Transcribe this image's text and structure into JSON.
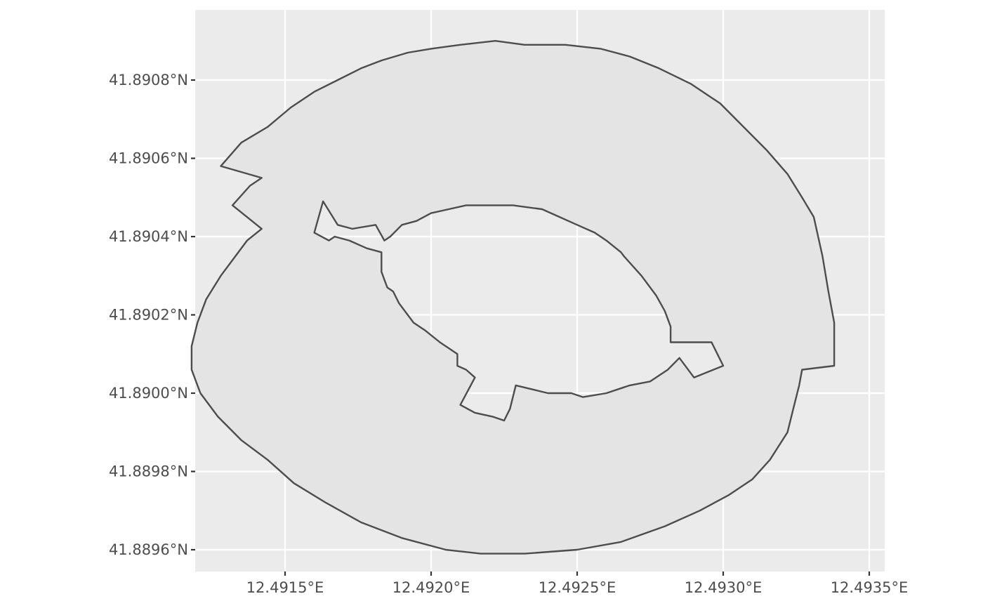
{
  "map_data": {
    "type": "polygon-with-hole",
    "feature_colors": {
      "fill": "#e4e4e4",
      "stroke": "#4d4d4d",
      "panel": "#ebebeb",
      "grid": "#ffffff"
    },
    "x_ticks": [
      {
        "value": 12.4915,
        "label": "12.4915°E"
      },
      {
        "value": 12.492,
        "label": "12.4920°E"
      },
      {
        "value": 12.4925,
        "label": "12.4925°E"
      },
      {
        "value": 12.493,
        "label": "12.4930°E"
      },
      {
        "value": 12.4935,
        "label": "12.4935°E"
      }
    ],
    "y_ticks": [
      {
        "value": 41.8896,
        "label": "41.8896°N"
      },
      {
        "value": 41.8898,
        "label": "41.8898°N"
      },
      {
        "value": 41.89,
        "label": "41.8900°N"
      },
      {
        "value": 41.8902,
        "label": "41.8902°N"
      },
      {
        "value": 41.8904,
        "label": "41.8904°N"
      },
      {
        "value": 41.8906,
        "label": "41.8906°N"
      },
      {
        "value": 41.8908,
        "label": "41.8908°N"
      }
    ],
    "xlim": [
      12.49119,
      12.49356
    ],
    "ylim": [
      41.88944,
      41.89087
    ],
    "outer_ring": [
      [
        12.49128,
        41.89058
      ],
      [
        12.49135,
        41.89064
      ],
      [
        12.49144,
        41.89068
      ],
      [
        12.49152,
        41.89073
      ],
      [
        12.4916,
        41.89077
      ],
      [
        12.49168,
        41.8908
      ],
      [
        12.49176,
        41.89083
      ],
      [
        12.49183,
        41.89085
      ],
      [
        12.49192,
        41.89087
      ],
      [
        12.492,
        41.89088
      ],
      [
        12.4921,
        41.89089
      ],
      [
        12.49222,
        41.8909
      ],
      [
        12.49232,
        41.89089
      ],
      [
        12.49246,
        41.89089
      ],
      [
        12.49258,
        41.89088
      ],
      [
        12.49268,
        41.89086
      ],
      [
        12.49278,
        41.89083
      ],
      [
        12.49289,
        41.89079
      ],
      [
        12.49299,
        41.89074
      ],
      [
        12.49307,
        41.89068
      ],
      [
        12.49315,
        41.89062
      ],
      [
        12.49322,
        41.89056
      ],
      [
        12.49327,
        41.8905
      ],
      [
        12.49331,
        41.89045
      ],
      [
        12.49334,
        41.89035
      ],
      [
        12.49336,
        41.89026
      ],
      [
        12.49338,
        41.89018
      ],
      [
        12.49338,
        41.89011
      ],
      [
        12.49338,
        41.89007
      ],
      [
        12.49327,
        41.89006
      ],
      [
        12.49326,
        41.89002
      ],
      [
        12.49324,
        41.88996
      ],
      [
        12.49322,
        41.8899
      ],
      [
        12.49316,
        41.88983
      ],
      [
        12.4931,
        41.88978
      ],
      [
        12.49302,
        41.88974
      ],
      [
        12.49292,
        41.8897
      ],
      [
        12.4928,
        41.88966
      ],
      [
        12.49265,
        41.88962
      ],
      [
        12.4925,
        41.8896
      ],
      [
        12.49232,
        41.88959
      ],
      [
        12.49217,
        41.88959
      ],
      [
        12.49205,
        41.8896
      ],
      [
        12.4919,
        41.88963
      ],
      [
        12.49176,
        41.88967
      ],
      [
        12.49164,
        41.88972
      ],
      [
        12.49153,
        41.88977
      ],
      [
        12.49144,
        41.88983
      ],
      [
        12.49135,
        41.88988
      ],
      [
        12.49127,
        41.88994
      ],
      [
        12.49121,
        41.89
      ],
      [
        12.49118,
        41.89006
      ],
      [
        12.49118,
        41.89012
      ],
      [
        12.4912,
        41.89018
      ],
      [
        12.49123,
        41.89024
      ],
      [
        12.49128,
        41.8903
      ],
      [
        12.49133,
        41.89035
      ],
      [
        12.49137,
        41.89039
      ],
      [
        12.49142,
        41.89042
      ],
      [
        12.49132,
        41.89048
      ],
      [
        12.49138,
        41.89053
      ],
      [
        12.49142,
        41.89055
      ],
      [
        12.49128,
        41.89058
      ]
    ],
    "inner_ring": [
      [
        12.4916,
        41.89041
      ],
      [
        12.49165,
        41.89039
      ],
      [
        12.49167,
        41.8904
      ],
      [
        12.49172,
        41.89039
      ],
      [
        12.49178,
        41.89037
      ],
      [
        12.49183,
        41.89036
      ],
      [
        12.49183,
        41.89034
      ],
      [
        12.49183,
        41.89031
      ],
      [
        12.49184,
        41.89029
      ],
      [
        12.49185,
        41.89027
      ],
      [
        12.49187,
        41.89026
      ],
      [
        12.49189,
        41.89023
      ],
      [
        12.49192,
        41.8902
      ],
      [
        12.49194,
        41.89018
      ],
      [
        12.49198,
        41.89016
      ],
      [
        12.49203,
        41.89013
      ],
      [
        12.49209,
        41.8901
      ],
      [
        12.49209,
        41.89007
      ],
      [
        12.49212,
        41.89006
      ],
      [
        12.49215,
        41.89004
      ],
      [
        12.4921,
        41.88997
      ],
      [
        12.49215,
        41.88995
      ],
      [
        12.49221,
        41.88994
      ],
      [
        12.49225,
        41.88993
      ],
      [
        12.49227,
        41.88996
      ],
      [
        12.49229,
        41.89002
      ],
      [
        12.4924,
        41.89
      ],
      [
        12.4924,
        41.89
      ],
      [
        12.49244,
        41.89
      ],
      [
        12.49245,
        41.89
      ],
      [
        12.49248,
        41.89
      ],
      [
        12.49248,
        41.89
      ],
      [
        12.49252,
        41.88999
      ],
      [
        12.4926,
        41.89
      ],
      [
        12.49268,
        41.89002
      ],
      [
        12.49275,
        41.89003
      ],
      [
        12.49281,
        41.89006
      ],
      [
        12.49285,
        41.89009
      ],
      [
        12.4929,
        41.89004
      ],
      [
        12.493,
        41.89007
      ],
      [
        12.49296,
        41.89013
      ],
      [
        12.49282,
        41.89013
      ],
      [
        12.49282,
        41.89017
      ],
      [
        12.4928,
        41.89021
      ],
      [
        12.49277,
        41.89025
      ],
      [
        12.49272,
        41.8903
      ],
      [
        12.49266,
        41.89035
      ],
      [
        12.49265,
        41.89036
      ],
      [
        12.4926,
        41.89039
      ],
      [
        12.49256,
        41.89041
      ],
      [
        12.4925,
        41.89043
      ],
      [
        12.49244,
        41.89045
      ],
      [
        12.49238,
        41.89047
      ],
      [
        12.49228,
        41.89048
      ],
      [
        12.4922,
        41.89048
      ],
      [
        12.49212,
        41.89048
      ],
      [
        12.49206,
        41.89047
      ],
      [
        12.492,
        41.89046
      ],
      [
        12.49195,
        41.89044
      ],
      [
        12.4919,
        41.89043
      ],
      [
        12.49186,
        41.8904
      ],
      [
        12.49184,
        41.89039
      ],
      [
        12.49181,
        41.89043
      ],
      [
        12.49173,
        41.89042
      ],
      [
        12.49168,
        41.89043
      ],
      [
        12.49163,
        41.89049
      ],
      [
        12.4916,
        41.89041
      ]
    ]
  }
}
